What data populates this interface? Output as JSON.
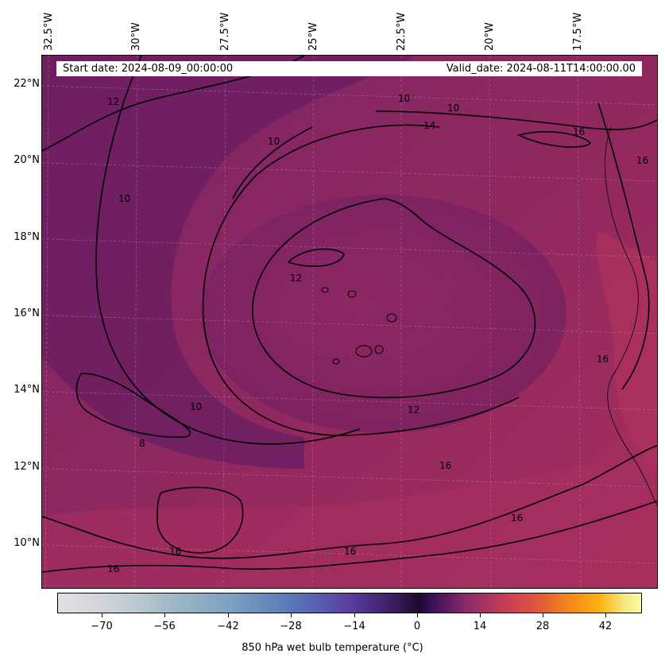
{
  "map": {
    "start_date": "Start date: 2024-08-09_00:00:00",
    "valid_date": "Valid_date: 2024-08-11T14:00:00.00",
    "lon_labels": [
      "32.5°W",
      "30°W",
      "27.5°W",
      "25°W",
      "22.5°W",
      "20°W",
      "17.5°W"
    ],
    "lat_labels": [
      "22°N",
      "20°N",
      "18°N",
      "16°N",
      "14°N",
      "12°N",
      "10°N"
    ],
    "contour_labels": [
      "12",
      "10",
      "10",
      "14",
      "16",
      "16",
      "10",
      "12",
      "8",
      "10",
      "10",
      "12",
      "16",
      "16",
      "16",
      "16",
      "16",
      "16"
    ],
    "colors": {
      "background": "#8e2a63",
      "dry_core": "#6d1e62",
      "warm_band": "#a8305f",
      "contour": "#000000"
    }
  },
  "colorbar": {
    "ticks": [
      "−70",
      "−56",
      "−42",
      "−28",
      "−14",
      "0",
      "14",
      "28",
      "42"
    ],
    "title": "850 hPa wet bulb temperature (°C)",
    "range": [
      -80,
      48
    ]
  }
}
